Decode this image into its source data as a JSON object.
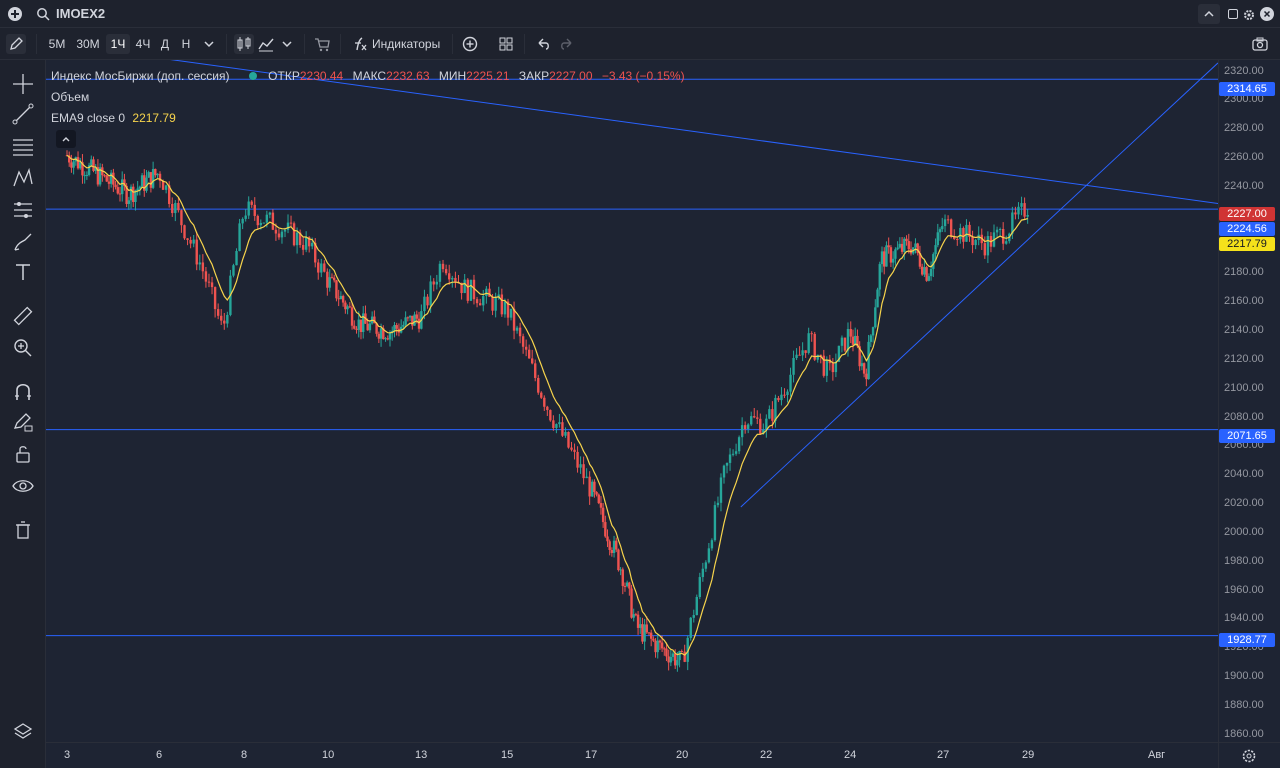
{
  "symbol": "IMOEX2",
  "toolbar": {
    "intervals": [
      "5М",
      "30М",
      "1Ч",
      "4Ч",
      "Д",
      "Н"
    ],
    "active_interval": "1Ч",
    "indicators_label": "Индикаторы"
  },
  "legend": {
    "name": "Индекс МосБиржи (доп. сессия)",
    "open_label": "ОТКР",
    "open": "2230.44",
    "high_label": "МАКС",
    "high": "2232.63",
    "low_label": "МИН",
    "low": "2225.21",
    "close_label": "ЗАКР",
    "close": "2227.00",
    "change": "−3.43 (−0.15%)",
    "volume_label": "Объем",
    "ema_label": "EMA9 close 0",
    "ema_value": "2217.79"
  },
  "price_axis": {
    "ticks": [
      "2320.00",
      "2300.00",
      "2280.00",
      "2260.00",
      "2240.00",
      "2220.00",
      "2200.00",
      "2180.00",
      "2160.00",
      "2140.00",
      "2120.00",
      "2100.00",
      "2080.00",
      "2060.00",
      "2040.00",
      "2020.00",
      "2000.00",
      "1980.00",
      "1960.00",
      "1940.00",
      "1920.00",
      "1900.00",
      "1880.00",
      "1860.00"
    ],
    "tags": {
      "level_top": "2314.65",
      "last_close": "2227.00",
      "level_mid": "2224.56",
      "ema": "2217.79",
      "level_2071": "2071.65",
      "level_1928": "1928.77"
    }
  },
  "time_axis": {
    "labels": [
      "3",
      "6",
      "8",
      "10",
      "13",
      "15",
      "17",
      "20",
      "22",
      "24",
      "27",
      "29",
      "Авг"
    ]
  },
  "colors": {
    "up": "#26a69a",
    "down": "#ef5350",
    "ema": "#f7d44c",
    "hline": "#2962ff",
    "tag_blue": "#2962ff",
    "tag_red": "#d03434",
    "tag_yellow": "#f5e11b"
  },
  "icons": {
    "left_toolbar": [
      "crosshair-icon",
      "trendline-icon",
      "fib-icon",
      "pattern-icon",
      "forecast-icon",
      "brush-icon",
      "text-icon",
      "ruler-icon",
      "zoom-icon",
      "magnet-icon",
      "lock-draw-icon",
      "lock-icon",
      "eye-icon",
      "trash-icon",
      "layers-icon"
    ]
  },
  "chart_data": {
    "type": "candlestick",
    "title": "Индекс МосБиржи (доп. сессия)",
    "ylim": [
      1855,
      2328
    ],
    "x_labels": [
      "3",
      "6",
      "8",
      "10",
      "13",
      "15",
      "17",
      "20",
      "22",
      "24",
      "27",
      "29",
      "Авг"
    ],
    "horizontal_levels": [
      2314.65,
      2224.56,
      2071.65,
      1928.77
    ],
    "series": [
      {
        "name": "Индекс МосБиржи (доп. сессия)",
        "approx_close_path": [
          [
            "3",
            2262
          ],
          [
            "5",
            2235
          ],
          [
            "6",
            2250
          ],
          [
            "7",
            2185
          ],
          [
            "7",
            2140
          ],
          [
            "8",
            2225
          ],
          [
            "9",
            2210
          ],
          [
            "9",
            2200
          ],
          [
            "10",
            2175
          ],
          [
            "11",
            2145
          ],
          [
            "12",
            2140
          ],
          [
            "13",
            2150
          ],
          [
            "13",
            2190
          ],
          [
            "14",
            2170
          ],
          [
            "15",
            2155
          ],
          [
            "16",
            2085
          ],
          [
            "17",
            2030
          ],
          [
            "18",
            1975
          ],
          [
            "18",
            1935
          ],
          [
            "19",
            1925
          ],
          [
            "20",
            1910
          ],
          [
            "21",
            2040
          ],
          [
            "21",
            2080
          ],
          [
            "22",
            2075
          ],
          [
            "23",
            2135
          ],
          [
            "23",
            2110
          ],
          [
            "24",
            2140
          ],
          [
            "24",
            2110
          ],
          [
            "25",
            2190
          ],
          [
            "26",
            2200
          ],
          [
            "26",
            2180
          ],
          [
            "27",
            2215
          ],
          [
            "28",
            2200
          ],
          [
            "28",
            2210
          ],
          [
            "29",
            2227
          ]
        ]
      },
      {
        "name": "EMA9 close 0",
        "last": 2217.79
      }
    ]
  }
}
